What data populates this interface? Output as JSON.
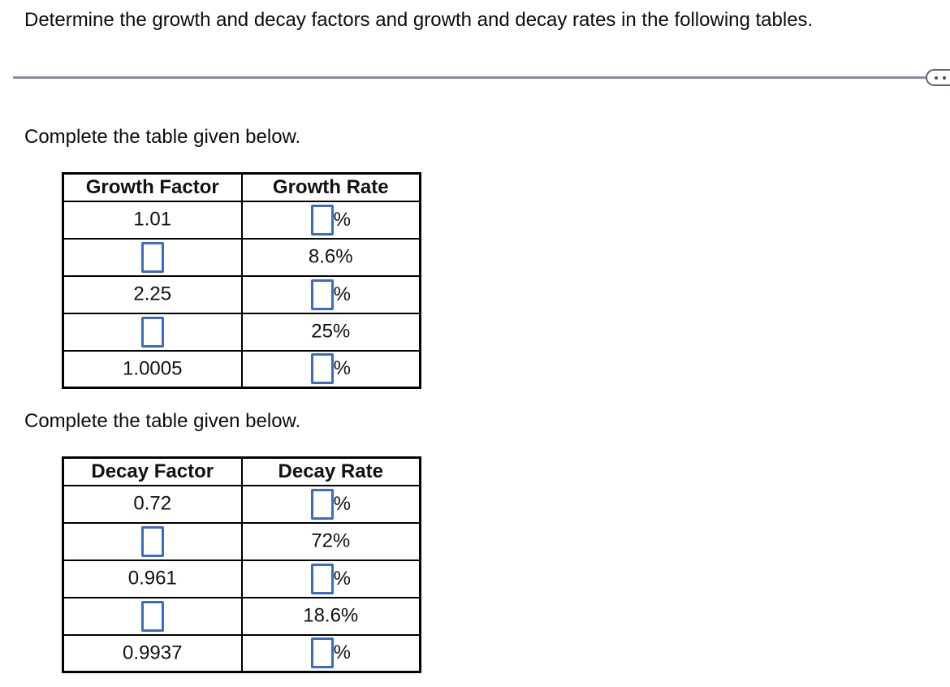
{
  "title": "Determine the growth and decay factors and growth and decay rates in the following tables.",
  "divider": {
    "more_button": {
      "icon": "ellipsis-icon",
      "dot_count": 3
    }
  },
  "colors": {
    "answer_box_border": "#3d6ac6",
    "divider_line": "#868e9c",
    "pill_border": "#5c6573",
    "pill_dot": "#454c57",
    "table_border": "#000000",
    "text": "#0c0c0c"
  },
  "sections": [
    {
      "instruction": "Complete the table given below.",
      "table": {
        "headers": [
          "Growth Factor",
          "Growth Rate"
        ],
        "rows": [
          {
            "factor": {
              "input": false,
              "text": "1.01"
            },
            "rate": {
              "input": true,
              "suffix": "%"
            }
          },
          {
            "factor": {
              "input": true
            },
            "rate": {
              "input": false,
              "text": "8.6%"
            }
          },
          {
            "factor": {
              "input": false,
              "text": "2.25"
            },
            "rate": {
              "input": true,
              "suffix": "%"
            }
          },
          {
            "factor": {
              "input": true
            },
            "rate": {
              "input": false,
              "text": "25%"
            }
          },
          {
            "factor": {
              "input": false,
              "text": "1.0005"
            },
            "rate": {
              "input": true,
              "suffix": "%"
            }
          }
        ]
      }
    },
    {
      "instruction": "Complete the table given below.",
      "table": {
        "headers": [
          "Decay Factor",
          "Decay Rate"
        ],
        "rows": [
          {
            "factor": {
              "input": false,
              "text": "0.72"
            },
            "rate": {
              "input": true,
              "suffix": "%"
            }
          },
          {
            "factor": {
              "input": true
            },
            "rate": {
              "input": false,
              "text": "72%"
            }
          },
          {
            "factor": {
              "input": false,
              "text": "0.961"
            },
            "rate": {
              "input": true,
              "suffix": "%"
            }
          },
          {
            "factor": {
              "input": true
            },
            "rate": {
              "input": false,
              "text": "18.6%"
            }
          },
          {
            "factor": {
              "input": false,
              "text": "0.9937"
            },
            "rate": {
              "input": true,
              "suffix": "%"
            }
          }
        ]
      }
    }
  ]
}
